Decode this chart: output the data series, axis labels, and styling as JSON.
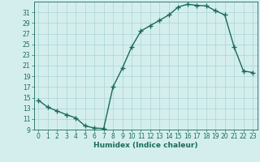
{
  "x": [
    0,
    1,
    2,
    3,
    4,
    5,
    6,
    7,
    8,
    9,
    10,
    11,
    12,
    13,
    14,
    15,
    16,
    17,
    18,
    19,
    20,
    21,
    22,
    23
  ],
  "y": [
    14.5,
    13.2,
    12.5,
    11.8,
    11.2,
    9.7,
    9.3,
    9.2,
    17.0,
    20.5,
    24.5,
    27.5,
    28.5,
    29.5,
    30.5,
    32.0,
    32.5,
    32.3,
    32.2,
    31.3,
    30.5,
    24.5,
    20.0,
    19.7
  ],
  "line_color": "#1a6b5a",
  "marker": "+",
  "marker_size": 4,
  "marker_linewidth": 1.0,
  "line_width": 1.0,
  "bg_color": "#d4eeee",
  "grid_color": "#aad4d4",
  "xlabel": "Humidex (Indice chaleur)",
  "xlim": [
    -0.5,
    23.5
  ],
  "ylim": [
    9,
    33
  ],
  "yticks": [
    9,
    11,
    13,
    15,
    17,
    19,
    21,
    23,
    25,
    27,
    29,
    31
  ],
  "xticks": [
    0,
    1,
    2,
    3,
    4,
    5,
    6,
    7,
    8,
    9,
    10,
    11,
    12,
    13,
    14,
    15,
    16,
    17,
    18,
    19,
    20,
    21,
    22,
    23
  ],
  "label_fontsize": 6.5,
  "tick_fontsize": 5.5
}
